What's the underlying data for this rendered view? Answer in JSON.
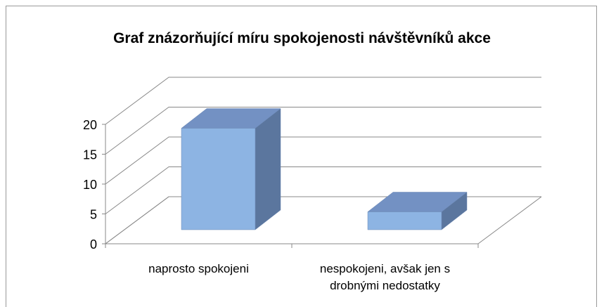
{
  "chart_data": {
    "type": "bar3d",
    "title": "Graf znázorňující míru spokojenosti návštěvníků akce",
    "categories": [
      "naprosto spokojeni",
      "nespokojeni, avšak jen s drobnými nedostatky"
    ],
    "values": [
      17,
      3
    ],
    "color": "#8db4e3",
    "ylim": [
      0,
      20
    ],
    "yticks": [
      0,
      5,
      10,
      15,
      20
    ],
    "grid": true
  }
}
